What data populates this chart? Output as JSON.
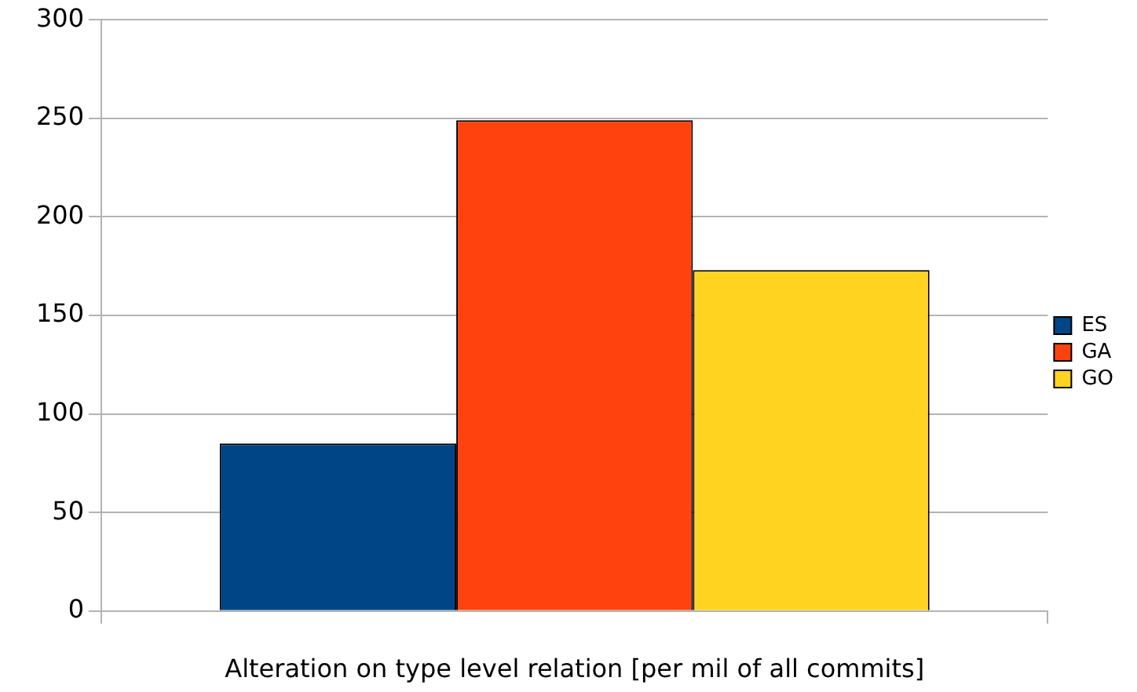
{
  "chart_data": {
    "type": "bar",
    "xlabel": "Alteration on type level relation [per mil of all commits]",
    "categories": [
      null
    ],
    "series": [
      {
        "name": "ES",
        "color": "#004586",
        "values": [
          85
        ]
      },
      {
        "name": "GA",
        "color": "#ff420e",
        "values": [
          249
        ]
      },
      {
        "name": "GO",
        "color": "#ffd320",
        "values": [
          173
        ]
      }
    ],
    "ylim": [
      0,
      300
    ],
    "yticks": [
      0,
      50,
      100,
      150,
      200,
      250,
      300
    ],
    "grid": "y",
    "legend": "right"
  }
}
